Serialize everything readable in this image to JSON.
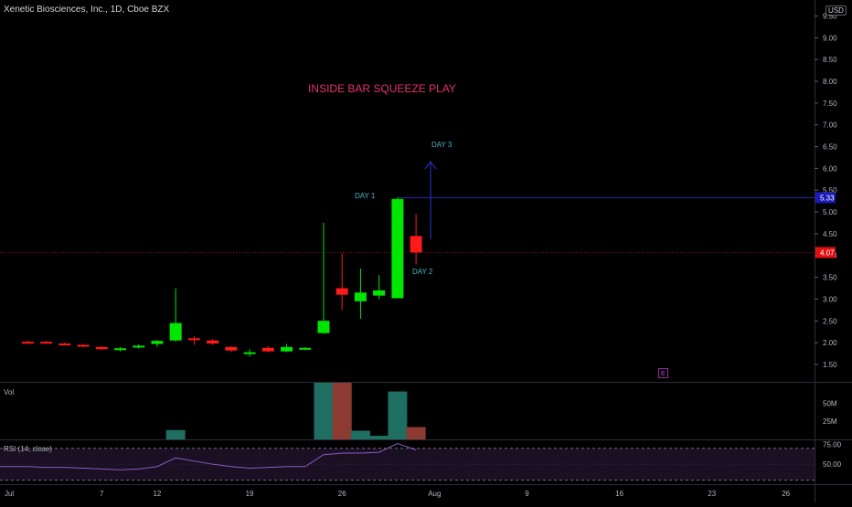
{
  "header": {
    "symbol_title": "Xenetic Biosciences, Inc., 1D, Cboe BZX",
    "currency": "USD"
  },
  "chart_data": {
    "type": "candlestick",
    "annotations": {
      "headline": "INSIDE BAR SQUEEZE PLAY",
      "day1": "DAY 1",
      "day2": "DAY 2",
      "day3": "DAY 3"
    },
    "price_axis": {
      "ticks": [
        "1.50",
        "2.00",
        "2.50",
        "3.00",
        "3.50",
        "4.00",
        "4.50",
        "5.00",
        "5.50",
        "6.00",
        "6.50",
        "7.00",
        "7.50",
        "8.00",
        "8.50",
        "9.00",
        "9.50"
      ],
      "tick_values": [
        1.5,
        2.0,
        2.5,
        3.0,
        3.5,
        4.0,
        4.5,
        5.0,
        5.5,
        6.0,
        6.5,
        7.0,
        7.5,
        8.0,
        8.5,
        9.0,
        9.5
      ],
      "ylim": [
        1.1,
        9.7
      ]
    },
    "price_labels": [
      {
        "value": 5.33,
        "text": "5.33",
        "color": "#1a1ab8"
      },
      {
        "value": 4.07,
        "text": "4.07",
        "color": "#e01010"
      }
    ],
    "horizontal_lines": [
      {
        "value": 5.33,
        "color": "#2a2ab0",
        "style": "solid"
      },
      {
        "value": 4.07,
        "color": "#a01010",
        "style": "dotted"
      }
    ],
    "x_axis": {
      "labels": [
        "Jul",
        "7",
        "12",
        "19",
        "26",
        "Aug",
        "9",
        "16",
        "23",
        "26"
      ],
      "label_index": [
        -1,
        4,
        7,
        12,
        17,
        22,
        27,
        32,
        37,
        41
      ],
      "xlim": [
        -1.5,
        42.5
      ]
    },
    "candles": [
      {
        "i": 0,
        "o": 2.02,
        "h": 2.05,
        "l": 1.98,
        "c": 2.0
      },
      {
        "i": 1,
        "o": 2.02,
        "h": 2.04,
        "l": 1.98,
        "c": 2.0
      },
      {
        "i": 2,
        "o": 1.98,
        "h": 2.0,
        "l": 1.94,
        "c": 1.95
      },
      {
        "i": 3,
        "o": 1.95,
        "h": 1.97,
        "l": 1.9,
        "c": 1.92
      },
      {
        "i": 4,
        "o": 1.9,
        "h": 1.92,
        "l": 1.83,
        "c": 1.85
      },
      {
        "i": 5,
        "o": 1.83,
        "h": 1.9,
        "l": 1.8,
        "c": 1.87
      },
      {
        "i": 6,
        "o": 1.9,
        "h": 1.96,
        "l": 1.86,
        "c": 1.93
      },
      {
        "i": 7,
        "o": 1.97,
        "h": 2.06,
        "l": 1.9,
        "c": 2.04
      },
      {
        "i": 8,
        "o": 2.05,
        "h": 3.25,
        "l": 2.02,
        "c": 2.45
      },
      {
        "i": 9,
        "o": 2.1,
        "h": 2.15,
        "l": 1.95,
        "c": 2.06
      },
      {
        "i": 10,
        "o": 2.05,
        "h": 2.08,
        "l": 1.95,
        "c": 1.98
      },
      {
        "i": 11,
        "o": 1.9,
        "h": 1.92,
        "l": 1.78,
        "c": 1.82
      },
      {
        "i": 12,
        "o": 1.75,
        "h": 1.85,
        "l": 1.68,
        "c": 1.78
      },
      {
        "i": 13,
        "o": 1.88,
        "h": 1.92,
        "l": 1.78,
        "c": 1.8
      },
      {
        "i": 14,
        "o": 1.8,
        "h": 1.97,
        "l": 1.78,
        "c": 1.9
      },
      {
        "i": 15,
        "o": 1.86,
        "h": 1.9,
        "l": 1.83,
        "c": 1.88
      },
      {
        "i": 16,
        "o": 2.22,
        "h": 4.75,
        "l": 2.2,
        "c": 2.5
      },
      {
        "i": 17,
        "o": 3.25,
        "h": 4.05,
        "l": 2.75,
        "c": 3.1
      },
      {
        "i": 18,
        "o": 2.95,
        "h": 3.7,
        "l": 2.55,
        "c": 3.15
      },
      {
        "i": 19,
        "o": 3.08,
        "h": 3.55,
        "l": 3.0,
        "c": 3.2
      },
      {
        "i": 20,
        "o": 3.02,
        "h": 5.33,
        "l": 3.02,
        "c": 5.3
      },
      {
        "i": 21,
        "o": 4.45,
        "h": 4.95,
        "l": 3.8,
        "c": 4.07
      }
    ],
    "volume": {
      "ticks": [
        "25M",
        "50M"
      ],
      "tick_values": [
        25,
        50
      ],
      "ylim": [
        0,
        78
      ],
      "values": [
        {
          "i": 8,
          "v": 13,
          "up": true
        },
        {
          "i": 16,
          "v": 78,
          "up": true
        },
        {
          "i": 17,
          "v": 78,
          "up": false
        },
        {
          "i": 18,
          "v": 12,
          "up": true
        },
        {
          "i": 19,
          "v": 5,
          "up": true
        },
        {
          "i": 20,
          "v": 66,
          "up": true
        },
        {
          "i": 21,
          "v": 17,
          "up": false
        }
      ]
    },
    "rsi": {
      "label": "RSI (14, close)",
      "ticks": [
        "50.00",
        "75.00"
      ],
      "tick_values": [
        50,
        75
      ],
      "bands": [
        30,
        70
      ],
      "ylim": [
        25,
        80
      ],
      "values": [
        47,
        46,
        46,
        45,
        44,
        43,
        44,
        47,
        58,
        54,
        50,
        47,
        45,
        46,
        47,
        47,
        62,
        64,
        64,
        65,
        76,
        68
      ]
    },
    "colors": {
      "up": "#00e600",
      "down": "#ff1a1a",
      "vol_up": "#1e6e62",
      "vol_down": "#8c3a32",
      "rsi_line": "#8a5bbf",
      "rsi_band": "#6a2d8a",
      "text": "#b2b5be",
      "headline": "#e5306d",
      "day_label": "#4fb4c8",
      "arrow": "#1f2fb8",
      "earnings": "#9c27b0"
    }
  },
  "earnings_marker": "E"
}
